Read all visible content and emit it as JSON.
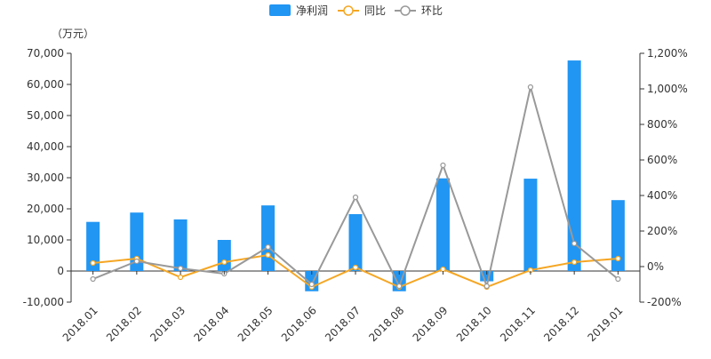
{
  "chart_data": {
    "type": "bar",
    "unit_label": "（万元）",
    "categories": [
      "2018.01",
      "2018.02",
      "2018.03",
      "2018.04",
      "2018.05",
      "2018.06",
      "2018.07",
      "2018.08",
      "2018.09",
      "2018.10",
      "2018.11",
      "2018.12",
      "2019.01"
    ],
    "series": [
      {
        "name": "净利润",
        "type": "bar",
        "axis": "left",
        "color": "#2196f3",
        "values": [
          15800,
          18800,
          16600,
          10000,
          21100,
          -6500,
          18300,
          -6500,
          29800,
          -3300,
          29700,
          67700,
          22800
        ]
      },
      {
        "name": "同比",
        "type": "line",
        "axis": "right",
        "color": "#f5a623",
        "values": [
          20,
          45,
          -60,
          25,
          65,
          -115,
          -5,
          -115,
          -15,
          -115,
          -20,
          25,
          45
        ]
      },
      {
        "name": "环比",
        "type": "line",
        "axis": "right",
        "color": "#999999",
        "values": [
          -70,
          30,
          -10,
          -40,
          110,
          -100,
          390,
          -110,
          570,
          -110,
          1010,
          130,
          -70
        ]
      }
    ],
    "left_axis": {
      "min": -10000,
      "max": 70000,
      "step": 10000,
      "ticks": [
        "-10,000",
        "0",
        "10,000",
        "20,000",
        "30,000",
        "40,000",
        "50,000",
        "60,000",
        "70,000"
      ]
    },
    "right_axis": {
      "min": -200,
      "max": 1200,
      "step": 200,
      "ticks": [
        "-200%",
        "0%",
        "200%",
        "400%",
        "600%",
        "800%",
        "1,000%",
        "1,200%"
      ]
    },
    "legend_position": "top-center",
    "grid": false
  }
}
